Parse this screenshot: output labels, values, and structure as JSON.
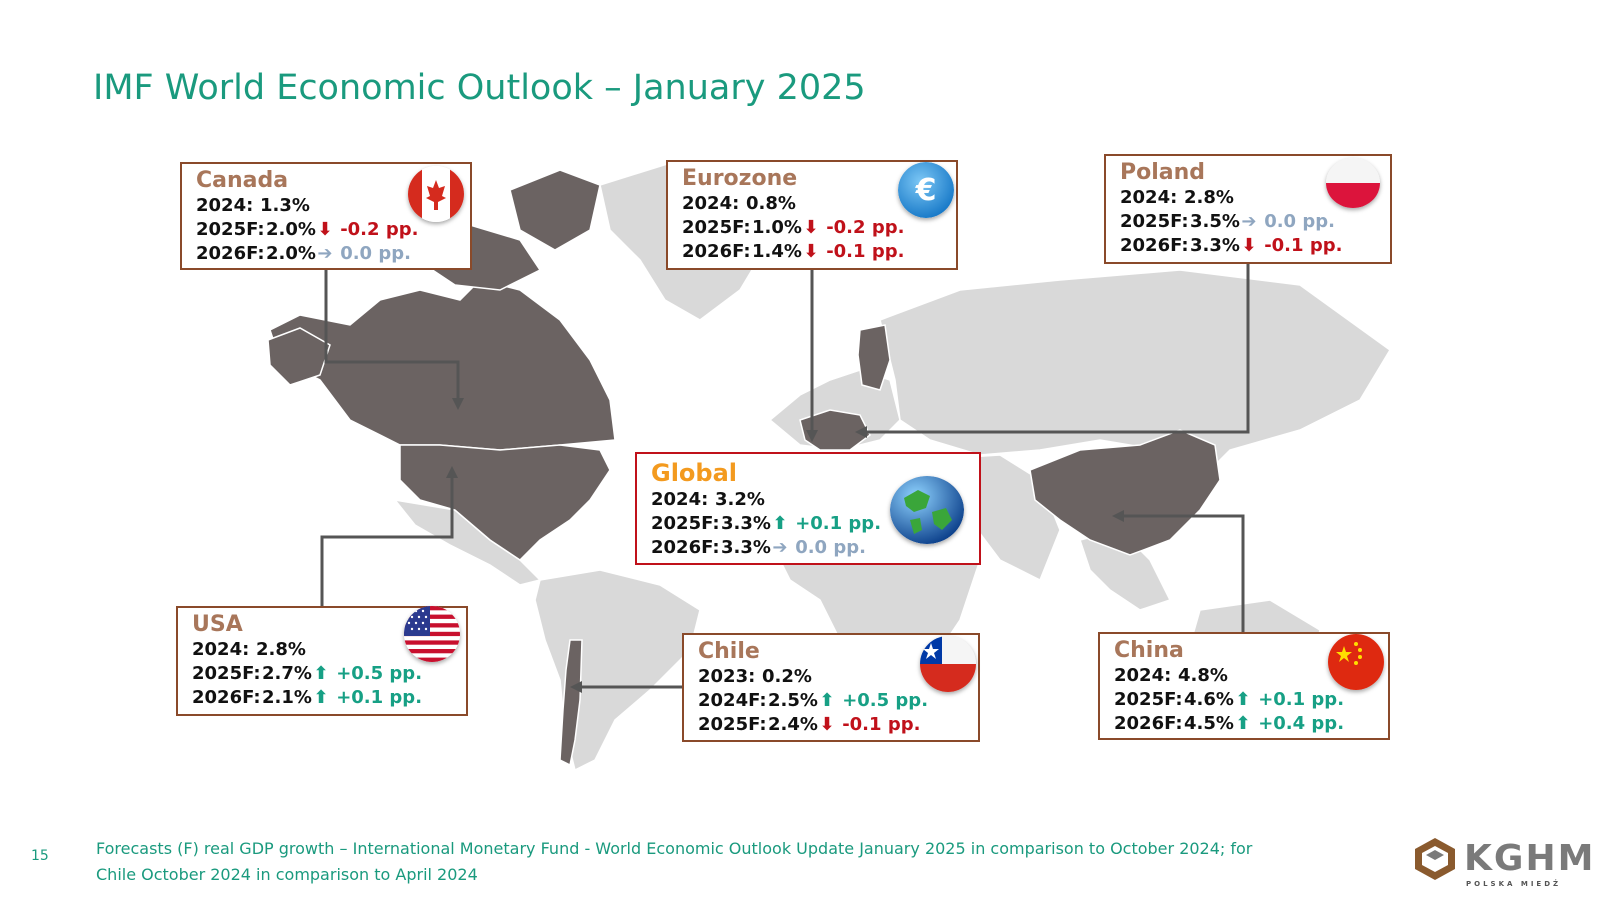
{
  "title": "IMF World Economic Outlook – January 2025",
  "page_number": "15",
  "footer": "Forecasts (F) real GDP growth – International Monetary Fund - World Economic Outlook Update January 2025 in comparison to October 2024; for Chile October 2024 in comparison to April 2024",
  "logo": {
    "brand": "KGHM",
    "sub": "POLSKA MIEDŹ"
  },
  "colors": {
    "title": "#1a9a7e",
    "down": "#c0111a",
    "up": "#17a085",
    "flat": "#8fa6c0",
    "map": "#6b6362",
    "map_light": "#d9d9d9"
  },
  "regions": {
    "canada": {
      "name": "Canada",
      "flag": "canada-flag-icon",
      "rows": [
        {
          "label": "2024:",
          "value": "1.3%",
          "trend": "",
          "change": ""
        },
        {
          "label": "2025F:",
          "value": "2.0%",
          "trend": "down",
          "change": "-0.2 pp."
        },
        {
          "label": "2026F:",
          "value": "2.0%",
          "trend": "flat",
          "change": "0.0  pp."
        }
      ]
    },
    "eurozone": {
      "name": "Eurozone",
      "flag": "euro-icon",
      "rows": [
        {
          "label": "2024:",
          "value": "0.8%",
          "trend": "",
          "change": ""
        },
        {
          "label": "2025F:",
          "value": "1.0%",
          "trend": "down",
          "change": "-0.2 pp."
        },
        {
          "label": "2026F:",
          "value": "1.4%",
          "trend": "down",
          "change": "-0.1 pp."
        }
      ]
    },
    "poland": {
      "name": "Poland",
      "flag": "poland-flag-icon",
      "rows": [
        {
          "label": "2024:",
          "value": "2.8%",
          "trend": "",
          "change": ""
        },
        {
          "label": "2025F:",
          "value": "3.5%",
          "trend": "flat",
          "change": "0.0  pp."
        },
        {
          "label": "2026F:",
          "value": "3.3%",
          "trend": "down",
          "change": "-0.1 pp."
        }
      ]
    },
    "global": {
      "name": "Global",
      "flag": "globe-icon",
      "rows": [
        {
          "label": "2024:",
          "value": "3.2%",
          "trend": "",
          "change": ""
        },
        {
          "label": "2025F:",
          "value": "3.3%",
          "trend": "up",
          "change": "+0.1 pp."
        },
        {
          "label": "2026F:",
          "value": "3.3%",
          "trend": "flat",
          "change": "0.0  pp."
        }
      ]
    },
    "usa": {
      "name": "USA",
      "flag": "usa-flag-icon",
      "rows": [
        {
          "label": "2024:",
          "value": "2.8%",
          "trend": "",
          "change": ""
        },
        {
          "label": "2025F:",
          "value": "2.7%",
          "trend": "up",
          "change": "+0.5 pp."
        },
        {
          "label": "2026F:",
          "value": "2.1%",
          "trend": "up",
          "change": "+0.1 pp."
        }
      ]
    },
    "chile": {
      "name": "Chile",
      "flag": "chile-flag-icon",
      "rows": [
        {
          "label": "2023:",
          "value": "0.2%",
          "trend": "",
          "change": ""
        },
        {
          "label": "2024F:",
          "value": "2.5%",
          "trend": "up",
          "change": "+0.5 pp."
        },
        {
          "label": "2025F:",
          "value": "2.4%",
          "trend": "down",
          "change": "-0.1 pp."
        }
      ]
    },
    "china": {
      "name": "China",
      "flag": "china-flag-icon",
      "rows": [
        {
          "label": "2024:",
          "value": "4.8%",
          "trend": "",
          "change": ""
        },
        {
          "label": "2025F:",
          "value": "4.6%",
          "trend": "up",
          "change": "+0.1 pp."
        },
        {
          "label": "2026F:",
          "value": "4.5%",
          "trend": "up",
          "change": "+0.4 pp."
        }
      ]
    }
  }
}
